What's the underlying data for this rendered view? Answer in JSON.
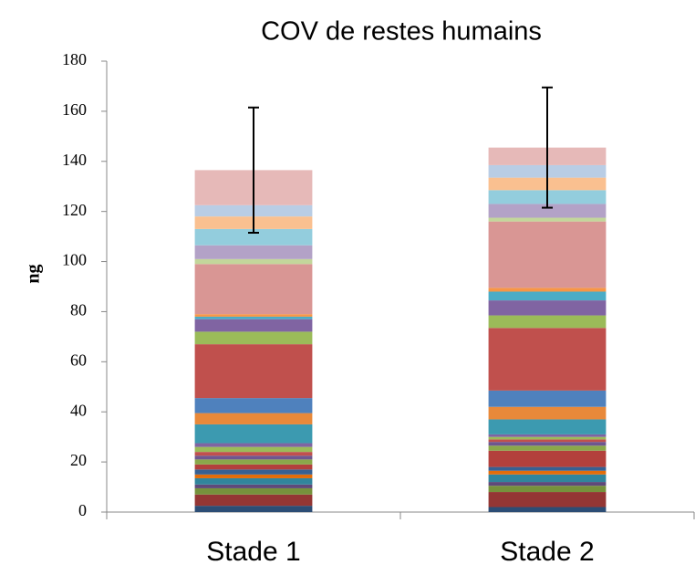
{
  "chart_data": {
    "type": "stacked_bar",
    "title": "COV de restes humains",
    "y_label": "ng",
    "categories": [
      "Stade 1",
      "Stade 2"
    ],
    "ylim": [
      0,
      180
    ],
    "yticks": [
      0,
      20,
      40,
      60,
      80,
      100,
      120,
      140,
      160,
      180
    ],
    "grid": false,
    "series": [
      {
        "color": "#2c4d75",
        "values": [
          2.5,
          2
        ]
      },
      {
        "color": "#943634",
        "values": [
          4.5,
          6
        ]
      },
      {
        "color": "#76923c",
        "values": [
          2.5,
          2.5
        ]
      },
      {
        "color": "#5f497a",
        "values": [
          1.5,
          1.5
        ]
      },
      {
        "color": "#31859c",
        "values": [
          2.5,
          3
        ]
      },
      {
        "color": "#e36c09",
        "values": [
          1.5,
          1.5
        ]
      },
      {
        "color": "#376092",
        "values": [
          2,
          1.5
        ]
      },
      {
        "color": "#b3403c",
        "values": [
          2,
          6.5
        ]
      },
      {
        "color": "#8aa84a",
        "values": [
          2,
          2
        ]
      },
      {
        "color": "#6e568f",
        "values": [
          1.5,
          1.5
        ]
      },
      {
        "color": "#c0504d",
        "values": [
          1.5,
          1
        ]
      },
      {
        "color": "#9bbb59",
        "values": [
          2,
          1
        ]
      },
      {
        "color": "#8064a2",
        "values": [
          1.5,
          1
        ]
      },
      {
        "color": "#3c9ab0",
        "values": [
          7.5,
          6
        ]
      },
      {
        "color": "#e8893a",
        "values": [
          4.5,
          5
        ]
      },
      {
        "color": "#4f81bd",
        "values": [
          6,
          6.5
        ]
      },
      {
        "color": "#c0504d",
        "values": [
          21.5,
          25
        ]
      },
      {
        "color": "#9bbb59",
        "values": [
          5,
          5
        ]
      },
      {
        "color": "#8064a2",
        "values": [
          5,
          6
        ]
      },
      {
        "color": "#4bacc6",
        "values": [
          1,
          3.5
        ]
      },
      {
        "color": "#f79646",
        "values": [
          1,
          1.5
        ]
      },
      {
        "color": "#d99694",
        "values": [
          20,
          26.5
        ]
      },
      {
        "color": "#c3d69b",
        "values": [
          2,
          1.5
        ]
      },
      {
        "color": "#b3a2c7",
        "values": [
          5.5,
          5.5
        ]
      },
      {
        "color": "#93cddd",
        "values": [
          6.5,
          5.5
        ]
      },
      {
        "color": "#fac090",
        "values": [
          5,
          5
        ]
      },
      {
        "color": "#b9cde5",
        "values": [
          4.5,
          5
        ]
      },
      {
        "color": "#e6b9b8",
        "values": [
          14,
          7
        ]
      }
    ],
    "error_bars": [
      25,
      24
    ]
  }
}
